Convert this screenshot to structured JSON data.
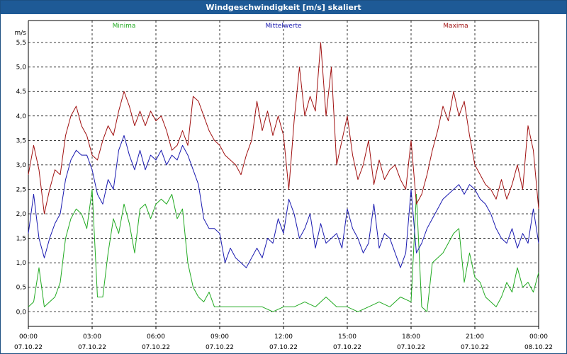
{
  "window": {
    "title": "Windgeschwindigkeit [m/s] skaliert"
  },
  "chart_data": {
    "type": "line",
    "unit_label": "m/s",
    "ylim": [
      -0.3,
      5.95
    ],
    "y_ticks": [
      0.0,
      0.5,
      1.0,
      1.5,
      2.0,
      2.5,
      3.0,
      3.5,
      4.0,
      4.5,
      5.0,
      5.5
    ],
    "y_tick_labels": [
      "0,0",
      "0,5",
      "1,0",
      "1,5",
      "2,0",
      "2,5",
      "3,0",
      "3,5",
      "4,0",
      "4,5",
      "5,0",
      "5,5"
    ],
    "xlim": [
      0,
      24
    ],
    "x_ticks": [
      {
        "hour": 0,
        "time": "00:00",
        "date": "07.10.22"
      },
      {
        "hour": 3,
        "time": "03:00",
        "date": "07.10.22"
      },
      {
        "hour": 6,
        "time": "06:00",
        "date": "07.10.22"
      },
      {
        "hour": 9,
        "time": "09:00",
        "date": "07.10.22"
      },
      {
        "hour": 12,
        "time": "12:00",
        "date": "07.10.22"
      },
      {
        "hour": 15,
        "time": "15:00",
        "date": "07.10.22"
      },
      {
        "hour": 18,
        "time": "18:00",
        "date": "07.10.22"
      },
      {
        "hour": 21,
        "time": "21:00",
        "date": "07.10.22"
      },
      {
        "hour": 24,
        "time": "00:00",
        "date": "08.10.22"
      }
    ],
    "grid": true,
    "series": [
      {
        "name": "Minima",
        "color": "#22aa22",
        "x": [
          0,
          0.25,
          0.5,
          0.75,
          1,
          1.25,
          1.5,
          1.75,
          2,
          2.25,
          2.5,
          2.75,
          3,
          3.25,
          3.5,
          3.75,
          4,
          4.25,
          4.5,
          4.75,
          5,
          5.25,
          5.5,
          5.75,
          6,
          6.25,
          6.5,
          6.75,
          7,
          7.25,
          7.5,
          7.75,
          8,
          8.25,
          8.5,
          8.75,
          9,
          9.5,
          10,
          10.5,
          11,
          11.5,
          12,
          12.5,
          13,
          13.5,
          14,
          14.5,
          15,
          15.5,
          16,
          16.5,
          17,
          17.5,
          18,
          18.25,
          18.5,
          18.75,
          19,
          19.25,
          19.5,
          19.75,
          20,
          20.25,
          20.5,
          20.75,
          21,
          21.25,
          21.5,
          21.75,
          22,
          22.25,
          22.5,
          22.75,
          23,
          23.25,
          23.5,
          23.75,
          24
        ],
        "values": [
          0.1,
          0.2,
          0.9,
          0.1,
          0.2,
          0.3,
          0.6,
          1.5,
          1.9,
          2.1,
          2.0,
          1.7,
          2.5,
          0.3,
          0.3,
          1.2,
          1.9,
          1.6,
          2.2,
          1.8,
          1.2,
          2.1,
          2.2,
          1.9,
          2.2,
          2.3,
          2.2,
          2.4,
          1.9,
          2.1,
          1.0,
          0.5,
          0.3,
          0.2,
          0.4,
          0.1,
          0.1,
          0.1,
          0.1,
          0.1,
          0.1,
          0.0,
          0.1,
          0.1,
          0.2,
          0.1,
          0.3,
          0.1,
          0.1,
          0.0,
          0.1,
          0.2,
          0.1,
          0.3,
          0.2,
          2.4,
          0.1,
          0.0,
          1.0,
          1.1,
          1.2,
          1.4,
          1.6,
          1.7,
          0.6,
          1.2,
          0.7,
          0.6,
          0.3,
          0.2,
          0.1,
          0.3,
          0.6,
          0.4,
          0.9,
          0.5,
          0.6,
          0.4,
          0.8
        ]
      },
      {
        "name": "Mittelwerte",
        "color": "#1a1ab0",
        "x": [
          0,
          0.25,
          0.5,
          0.75,
          1,
          1.25,
          1.5,
          1.75,
          2,
          2.25,
          2.5,
          2.75,
          3,
          3.25,
          3.5,
          3.75,
          4,
          4.25,
          4.5,
          4.75,
          5,
          5.25,
          5.5,
          5.75,
          6,
          6.25,
          6.5,
          6.75,
          7,
          7.25,
          7.5,
          7.75,
          8,
          8.25,
          8.5,
          8.75,
          9,
          9.25,
          9.5,
          9.75,
          10,
          10.25,
          10.5,
          10.75,
          11,
          11.25,
          11.5,
          11.75,
          12,
          12.25,
          12.5,
          12.75,
          13,
          13.25,
          13.5,
          13.75,
          14,
          14.25,
          14.5,
          14.75,
          15,
          15.25,
          15.5,
          15.75,
          16,
          16.25,
          16.5,
          16.75,
          17,
          17.25,
          17.5,
          17.75,
          18,
          18.25,
          18.5,
          18.75,
          19,
          19.25,
          19.5,
          19.75,
          20,
          20.25,
          20.5,
          20.75,
          21,
          21.25,
          21.5,
          21.75,
          22,
          22.25,
          22.5,
          22.75,
          23,
          23.25,
          23.5,
          23.75,
          24
        ],
        "values": [
          1.6,
          2.4,
          1.5,
          1.1,
          1.5,
          1.8,
          2.0,
          2.7,
          3.1,
          3.3,
          3.2,
          3.2,
          2.9,
          2.4,
          2.2,
          2.7,
          2.5,
          3.3,
          3.6,
          3.2,
          2.9,
          3.3,
          2.9,
          3.2,
          3.1,
          3.3,
          3.0,
          3.2,
          3.1,
          3.4,
          3.2,
          2.9,
          2.6,
          1.9,
          1.7,
          1.7,
          1.6,
          1.0,
          1.3,
          1.1,
          1.0,
          0.9,
          1.1,
          1.3,
          1.1,
          1.5,
          1.4,
          1.9,
          1.6,
          2.3,
          2.0,
          1.5,
          1.7,
          2.0,
          1.3,
          1.8,
          1.4,
          1.5,
          1.6,
          1.3,
          2.1,
          1.7,
          1.5,
          1.2,
          1.4,
          2.2,
          1.3,
          1.6,
          1.5,
          1.2,
          0.9,
          1.2,
          2.5,
          1.2,
          1.4,
          1.7,
          1.9,
          2.1,
          2.3,
          2.4,
          2.5,
          2.6,
          2.4,
          2.6,
          2.5,
          2.3,
          2.2,
          2.0,
          1.7,
          1.5,
          1.4,
          1.7,
          1.3,
          1.6,
          1.4,
          2.1,
          1.4
        ]
      },
      {
        "name": "Maxima",
        "color": "#a01010",
        "x": [
          0,
          0.25,
          0.5,
          0.75,
          1,
          1.25,
          1.5,
          1.75,
          2,
          2.25,
          2.5,
          2.75,
          3,
          3.25,
          3.5,
          3.75,
          4,
          4.25,
          4.5,
          4.75,
          5,
          5.25,
          5.5,
          5.75,
          6,
          6.25,
          6.5,
          6.75,
          7,
          7.25,
          7.5,
          7.75,
          8,
          8.25,
          8.5,
          8.75,
          9,
          9.25,
          9.5,
          9.75,
          10,
          10.25,
          10.5,
          10.75,
          11,
          11.25,
          11.5,
          11.75,
          12,
          12.25,
          12.5,
          12.75,
          13,
          13.25,
          13.5,
          13.75,
          14,
          14.25,
          14.5,
          14.75,
          15,
          15.25,
          15.5,
          15.75,
          16,
          16.25,
          16.5,
          16.75,
          17,
          17.25,
          17.5,
          17.75,
          18,
          18.25,
          18.5,
          18.75,
          19,
          19.25,
          19.5,
          19.75,
          20,
          20.25,
          20.5,
          20.75,
          21,
          21.25,
          21.5,
          21.75,
          22,
          22.25,
          22.5,
          22.75,
          23,
          23.25,
          23.5,
          23.75,
          24
        ],
        "values": [
          2.8,
          3.4,
          2.9,
          2.0,
          2.5,
          2.9,
          2.8,
          3.6,
          4.0,
          4.2,
          3.8,
          3.6,
          3.2,
          3.1,
          3.5,
          3.8,
          3.6,
          4.1,
          4.5,
          4.2,
          3.8,
          4.1,
          3.8,
          4.1,
          3.9,
          4.0,
          3.7,
          3.3,
          3.4,
          3.7,
          3.4,
          4.4,
          4.3,
          4.0,
          3.7,
          3.5,
          3.4,
          3.2,
          3.1,
          3.0,
          2.8,
          3.2,
          3.5,
          4.3,
          3.7,
          4.1,
          3.6,
          4.0,
          3.6,
          2.5,
          3.9,
          5.0,
          4.0,
          4.4,
          4.1,
          5.5,
          4.0,
          5.0,
          3.0,
          3.5,
          4.0,
          3.2,
          2.7,
          3.0,
          3.5,
          2.6,
          3.1,
          2.7,
          2.9,
          3.0,
          2.7,
          2.5,
          3.5,
          2.2,
          2.4,
          2.8,
          3.3,
          3.7,
          4.2,
          3.9,
          4.5,
          4.0,
          4.3,
          3.6,
          3.0,
          2.8,
          2.6,
          2.5,
          2.3,
          2.7,
          2.3,
          2.6,
          3.0,
          2.5,
          3.8,
          3.3,
          2.1
        ]
      }
    ]
  }
}
